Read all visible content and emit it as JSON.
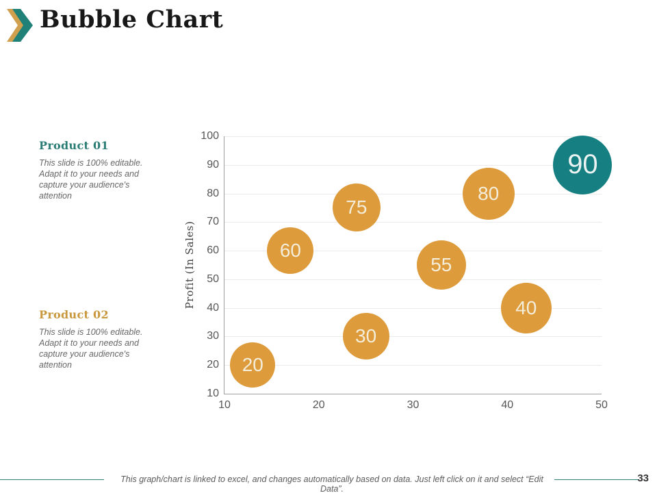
{
  "header": {
    "title": "Bubble Chart",
    "chevron_colors": {
      "back": "#d0a04f",
      "front": "#1f8178"
    }
  },
  "sidebar": {
    "products": [
      {
        "label": "Product 01",
        "accent_color": "#2a7d74",
        "description": "This slide is 100% editable. Adapt it to your needs and capture your audience's attention"
      },
      {
        "label": "Product 02",
        "accent_color": "#c9973d",
        "description": "This slide is 100% editable. Adapt it to your needs and capture your audience's attention"
      }
    ]
  },
  "chart_data": {
    "type": "scatter",
    "subtype": "bubble",
    "title": "",
    "xlabel": "",
    "ylabel": "Profit  (In Sales)",
    "xlim": [
      10,
      50
    ],
    "ylim": [
      10,
      100
    ],
    "xticks": [
      10,
      20,
      30,
      40,
      50
    ],
    "yticks": [
      10,
      20,
      30,
      40,
      50,
      60,
      70,
      80,
      90,
      100
    ],
    "grid": "horizontal",
    "legend": "none",
    "colors": {
      "orange": "#dd9b3b",
      "teal": "#157f81"
    },
    "points": [
      {
        "x": 13,
        "y": 20,
        "label": "20",
        "r": 33,
        "color": "#dd9b3b",
        "label_color": "#f3edda",
        "label_size": 28
      },
      {
        "x": 25,
        "y": 30,
        "label": "30",
        "r": 34,
        "color": "#dd9b3b",
        "label_color": "#f3edda",
        "label_size": 28
      },
      {
        "x": 17,
        "y": 60,
        "label": "60",
        "r": 34,
        "color": "#dd9b3b",
        "label_color": "#f3edda",
        "label_size": 28
      },
      {
        "x": 24,
        "y": 75,
        "label": "75",
        "r": 35,
        "color": "#dd9b3b",
        "label_color": "#f3edda",
        "label_size": 28
      },
      {
        "x": 33,
        "y": 55,
        "label": "55",
        "r": 36,
        "color": "#dd9b3b",
        "label_color": "#f3edda",
        "label_size": 28
      },
      {
        "x": 38,
        "y": 80,
        "label": "80",
        "r": 38,
        "color": "#dd9b3b",
        "label_color": "#f3edda",
        "label_size": 28
      },
      {
        "x": 42,
        "y": 40,
        "label": "40",
        "r": 37,
        "color": "#dd9b3b",
        "label_color": "#f3edda",
        "label_size": 28
      },
      {
        "x": 48,
        "y": 90,
        "label": "90",
        "r": 43,
        "color": "#157f81",
        "label_color": "#eaf3f1",
        "label_size": 40
      }
    ]
  },
  "footer": {
    "note": "This graph/chart is linked to excel, and changes automatically based on data. Just left click on it and select “Edit Data”.",
    "page_number": "33"
  }
}
